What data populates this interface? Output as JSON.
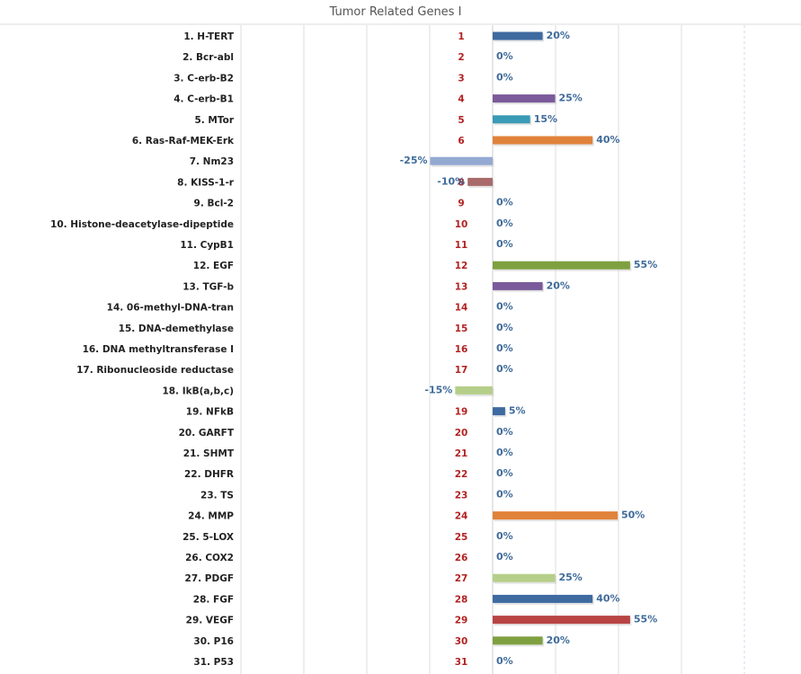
{
  "chart_data": {
    "type": "bar",
    "orientation": "horizontal",
    "title": "Tumor Related Genes I",
    "xlim": [
      -50,
      100
    ],
    "grid": true,
    "categories": [
      "1. H-TERT",
      "2. Bcr-abl",
      "3. C-erb-B2",
      "4. C-erb-B1",
      "5. MTor",
      "6. Ras-Raf-MEK-Erk",
      "7. Nm23",
      "8. KISS-1-r",
      "9. Bcl-2",
      "10. Histone-deacetylase-dipeptide",
      "11. CypB1",
      "12. EGF",
      "13. TGF-b",
      "14. 06-methyl-DNA-tran",
      "15. DNA-demethylase",
      "16. DNA methyltransferase I",
      "17. Ribonucleoside reductase",
      "18. IkB(a,b,c)",
      "19. NFkB",
      "20. GARFT",
      "21. SHMT",
      "22. DHFR",
      "23. TS",
      "24. MMP",
      "25. 5-LOX",
      "26. COX2",
      "27. PDGF",
      "28. FGF",
      "29. VEGF",
      "30. P16",
      "31. P53"
    ],
    "index_labels": [
      "1",
      "2",
      "3",
      "4",
      "5",
      "6",
      "7",
      "8",
      "9",
      "10",
      "11",
      "12",
      "13",
      "14",
      "15",
      "16",
      "17",
      "18",
      "19",
      "20",
      "21",
      "22",
      "23",
      "24",
      "25",
      "26",
      "27",
      "28",
      "29",
      "30",
      "31"
    ],
    "values": [
      20,
      0,
      0,
      25,
      15,
      40,
      -25,
      -10,
      0,
      0,
      0,
      55,
      20,
      0,
      0,
      0,
      0,
      -15,
      5,
      0,
      0,
      0,
      0,
      50,
      0,
      0,
      25,
      40,
      55,
      20,
      0
    ],
    "value_labels": [
      "20%",
      "0%",
      "0%",
      "25%",
      "15%",
      "40%",
      "-25%",
      "-10%",
      "0%",
      "0%",
      "0%",
      "55%",
      "20%",
      "0%",
      "0%",
      "0%",
      "0%",
      "-15%",
      "5%",
      "0%",
      "0%",
      "0%",
      "0%",
      "50%",
      "0%",
      "0%",
      "25%",
      "40%",
      "55%",
      "20%",
      "0%"
    ],
    "colors": [
      "#3e6aa0",
      "#3e6aa0",
      "#3e6aa0",
      "#7a5a9a",
      "#3a9bb5",
      "#e0823a",
      "#93a9d2",
      "#a86a6a",
      "#3e6aa0",
      "#3e6aa0",
      "#3e6aa0",
      "#7fa040",
      "#7a5a9a",
      "#3e6aa0",
      "#3e6aa0",
      "#3e6aa0",
      "#3e6aa0",
      "#b5cf8a",
      "#3e6aa0",
      "#3e6aa0",
      "#3e6aa0",
      "#3e6aa0",
      "#3e6aa0",
      "#e0823a",
      "#3e6aa0",
      "#3e6aa0",
      "#b5cf8a",
      "#3e6aa0",
      "#b84444",
      "#7fa040",
      "#3e6aa0"
    ]
  }
}
